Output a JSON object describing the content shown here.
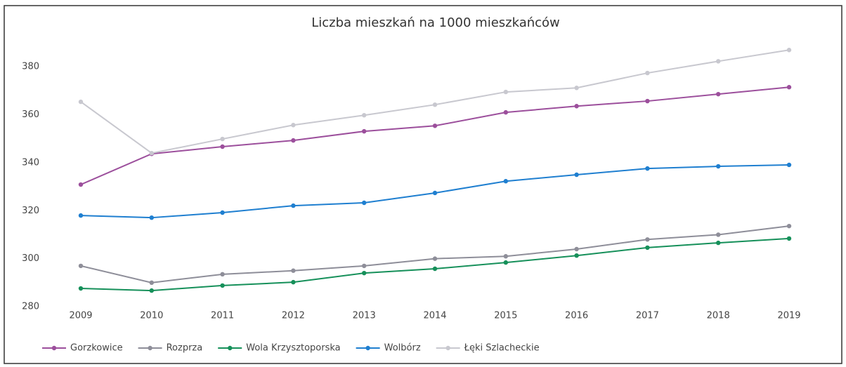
{
  "chart_data": {
    "type": "line",
    "title": "Liczba mieszkań na 1000 mieszkańców",
    "categories": [
      "2009",
      "2010",
      "2011",
      "2012",
      "2013",
      "2014",
      "2015",
      "2016",
      "2017",
      "2018",
      "2019"
    ],
    "series": [
      {
        "name": "Gorzkowice",
        "color": "#9c4f9c",
        "values": [
          330.9,
          343.7,
          346.7,
          349.3,
          353.1,
          355.4,
          361,
          363.6,
          365.7,
          368.6,
          371.5
        ]
      },
      {
        "name": "Rozprza",
        "color": "#8e8e99",
        "values": [
          297,
          290,
          293.5,
          295,
          297,
          300,
          301,
          304,
          308,
          310,
          313.6
        ]
      },
      {
        "name": "Wola Krzysztoporska",
        "color": "#16905a",
        "values": [
          287.6,
          286.7,
          288.8,
          290.2,
          294,
          295.8,
          298.4,
          301.3,
          304.6,
          306.6,
          308.4
        ]
      },
      {
        "name": "Wolbórz",
        "color": "#1f7fd0",
        "values": [
          318,
          317.1,
          319.2,
          322.1,
          323.3,
          327.4,
          332.3,
          335,
          337.6,
          338.5,
          339.1
        ]
      },
      {
        "name": "Łęki Szlacheckie",
        "color": "#c8c8cf",
        "values": [
          365.4,
          344,
          349.9,
          355.7,
          359.8,
          364.2,
          369.5,
          371.2,
          377.4,
          382.3,
          387
        ]
      }
    ],
    "ylim": [
      280,
      390
    ],
    "yticks": [
      280,
      300,
      320,
      340,
      360,
      380
    ],
    "legend": "bottom-left"
  }
}
